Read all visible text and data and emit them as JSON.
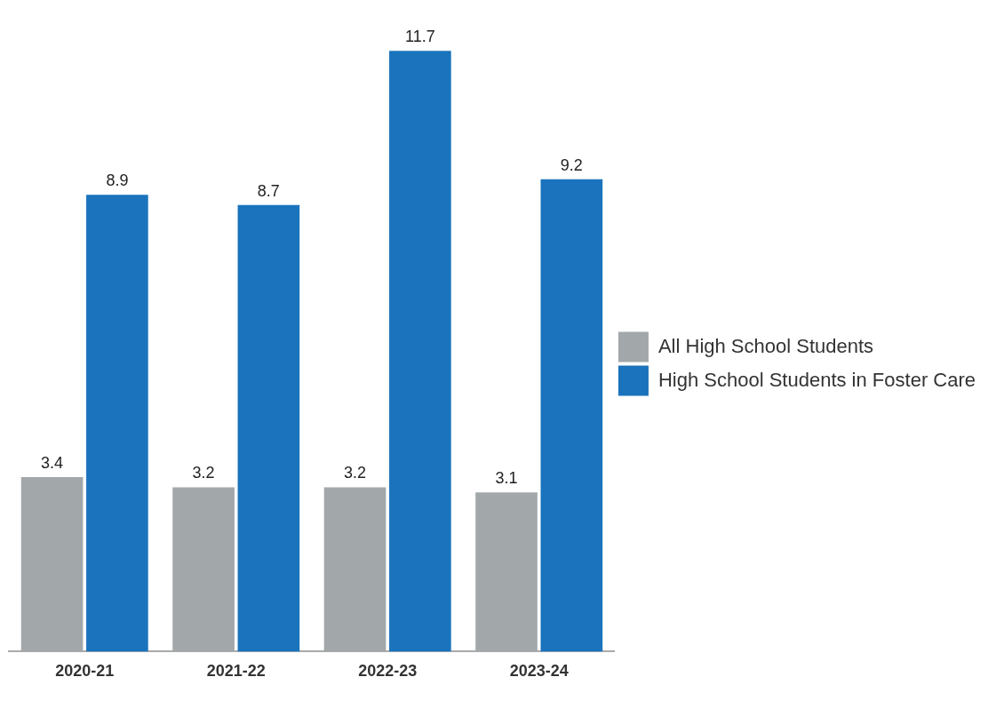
{
  "chart_data": {
    "type": "bar",
    "categories": [
      "2020-21",
      "2021-22",
      "2022-23",
      "2023-24"
    ],
    "series": [
      {
        "name": "All High School Students",
        "color": "#a2a7aa",
        "values": [
          3.4,
          3.2,
          3.2,
          3.1
        ]
      },
      {
        "name": "High School Students in Foster Care",
        "color": "#1a73bc",
        "values": [
          8.9,
          8.7,
          11.7,
          9.2
        ]
      }
    ],
    "data_labels": true,
    "legend": "right",
    "grid": false
  }
}
